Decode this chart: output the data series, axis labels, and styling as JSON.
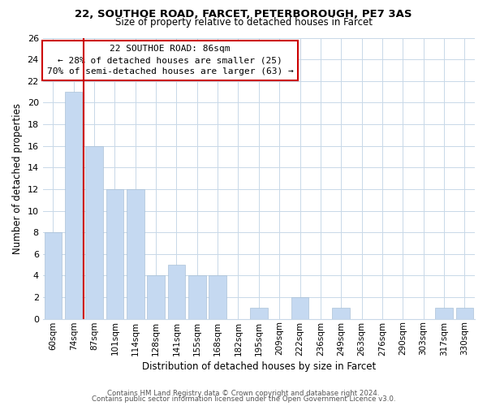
{
  "title": "22, SOUTHOE ROAD, FARCET, PETERBOROUGH, PE7 3AS",
  "subtitle": "Size of property relative to detached houses in Farcet",
  "xlabel": "Distribution of detached houses by size in Farcet",
  "ylabel": "Number of detached properties",
  "bar_labels": [
    "60sqm",
    "74sqm",
    "87sqm",
    "101sqm",
    "114sqm",
    "128sqm",
    "141sqm",
    "155sqm",
    "168sqm",
    "182sqm",
    "195sqm",
    "209sqm",
    "222sqm",
    "236sqm",
    "249sqm",
    "263sqm",
    "276sqm",
    "290sqm",
    "303sqm",
    "317sqm",
    "330sqm"
  ],
  "bar_values": [
    8,
    21,
    16,
    12,
    12,
    4,
    5,
    4,
    4,
    0,
    1,
    0,
    2,
    0,
    1,
    0,
    0,
    0,
    0,
    1,
    1
  ],
  "bar_color": "#c5d9f1",
  "highlight_line_color": "#cc0000",
  "red_line_index": 2,
  "ylim": [
    0,
    26
  ],
  "yticks": [
    0,
    2,
    4,
    6,
    8,
    10,
    12,
    14,
    16,
    18,
    20,
    22,
    24,
    26
  ],
  "annotation_title": "22 SOUTHOE ROAD: 86sqm",
  "annotation_line1": "← 28% of detached houses are smaller (25)",
  "annotation_line2": "70% of semi-detached houses are larger (63) →",
  "annotation_box_color": "#ffffff",
  "annotation_box_edgecolor": "#cc0000",
  "footer_line1": "Contains HM Land Registry data © Crown copyright and database right 2024.",
  "footer_line2": "Contains public sector information licensed under the Open Government Licence v3.0.",
  "background_color": "#ffffff",
  "grid_color": "#c8d8e8"
}
